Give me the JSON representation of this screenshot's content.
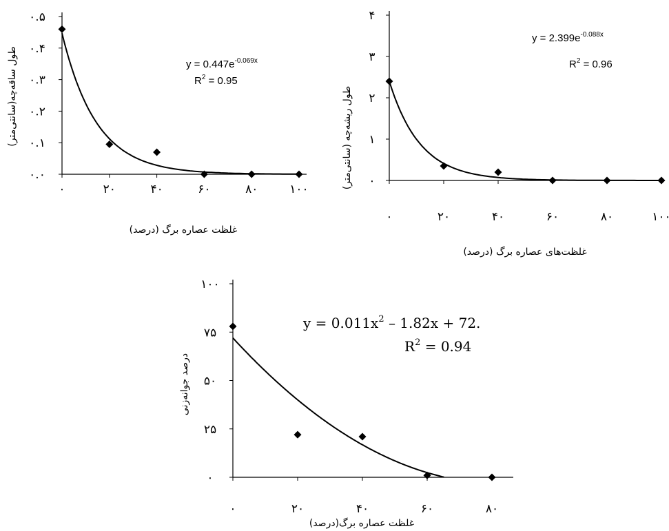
{
  "chart_data": [
    {
      "type": "scatter",
      "title": "",
      "xlabel": "غلظت عصاره برگ (درصد)",
      "ylabel": "طول ساقه‌چه(سانتی‌متر)",
      "x_ticks": [
        "۰",
        "۲۰",
        "۴۰",
        "۶۰",
        "۸۰",
        "۱۰۰"
      ],
      "y_ticks": [
        "۰.۰",
        "۰.۱",
        "۰.۲",
        "۰.۳",
        "۰.۴",
        "۰.۵"
      ],
      "xlim": [
        0,
        100
      ],
      "ylim": [
        0,
        0.5
      ],
      "x": [
        0,
        20,
        40,
        60,
        80,
        100
      ],
      "y": [
        0.46,
        0.095,
        0.07,
        0.0,
        0.0,
        0.0
      ],
      "trendline": {
        "a": 0.447,
        "b": -0.069,
        "kind": "exponential"
      },
      "equation": {
        "prefix": "y = 0.447e",
        "exp": "-0.069x",
        "r2_prefix": "R",
        "r2_sup": "2",
        "r2_suffix": " = 0.95"
      },
      "legend": "none",
      "grid": false
    },
    {
      "type": "scatter",
      "title": "",
      "xlabel": "غلظت‌های عصاره برگ (درصد)",
      "ylabel": "طول ریشه‌چه (سانتی‌متر)",
      "x_ticks": [
        "۰",
        "۲۰",
        "۴۰",
        "۶۰",
        "۸۰",
        "۱۰۰"
      ],
      "y_ticks": [
        "۰",
        "۱",
        "۲",
        "۳",
        "۴"
      ],
      "xlim": [
        0,
        100
      ],
      "ylim": [
        0,
        4
      ],
      "x": [
        0,
        20,
        40,
        60,
        80,
        100
      ],
      "y": [
        2.4,
        0.35,
        0.2,
        0.0,
        0.0,
        0.0
      ],
      "trendline": {
        "a": 2.399,
        "b": -0.088,
        "kind": "exponential"
      },
      "equation": {
        "prefix": "y = 2.399e",
        "exp": "-0.088x",
        "r2_prefix": "R",
        "r2_sup": "2",
        "r2_suffix": " = 0.96"
      },
      "legend": "none",
      "grid": false
    },
    {
      "type": "scatter",
      "title": "",
      "xlabel": "غلظت عصاره برگ(درصد)",
      "ylabel": "درصد جوانه‌زنی",
      "x_ticks": [
        "۰",
        "۲۰",
        "۴۰",
        "۶۰",
        "۸۰"
      ],
      "y_ticks": [
        "۰",
        "۲۵",
        "۵۰",
        "۷۵",
        "۱۰۰"
      ],
      "xlim": [
        0,
        80
      ],
      "ylim": [
        0,
        100
      ],
      "x": [
        0,
        20,
        40,
        60,
        80
      ],
      "y": [
        78,
        22,
        21,
        1,
        0
      ],
      "trendline": {
        "a": 0.011,
        "b": -1.82,
        "c": 72,
        "kind": "quadratic"
      },
      "equation": {
        "prefix": "y = 0.011x",
        "sup": "2",
        "suffix": " – 1.82x + 72.",
        "r2_prefix": "R",
        "r2_sup": "2",
        "r2_suffix": " = 0.94"
      },
      "legend": "none",
      "grid": false
    }
  ]
}
